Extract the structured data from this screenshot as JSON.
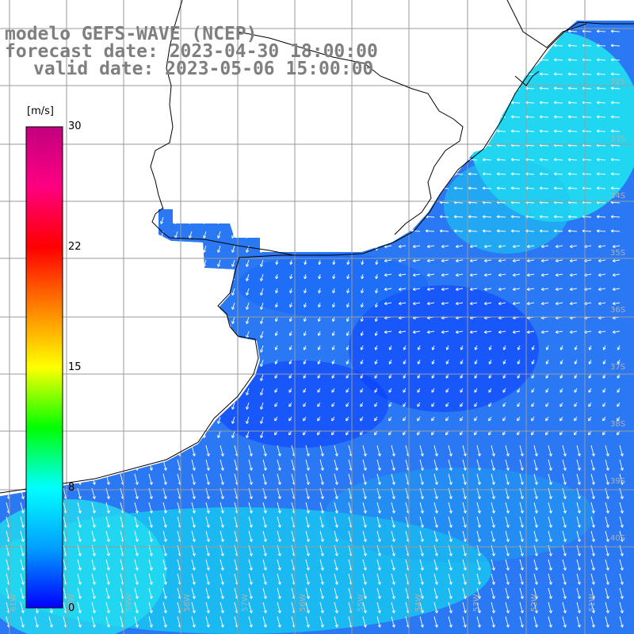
{
  "title": {
    "line1": "modelo GEFS-WAVE (NCEP)",
    "line2": "forecast date: 2023-04-30 18:00:00",
    "line3": "valid date: 2023-05-06 15:00:00"
  },
  "colorbar": {
    "unit": "[m/s]",
    "ticks": [
      "30",
      "22",
      "15",
      "8",
      "0"
    ],
    "tick_values": [
      30,
      22,
      15,
      8,
      0
    ],
    "colors": [
      "#0000ff",
      "#00a0ff",
      "#00ffff",
      "#00ff00",
      "#ffff00",
      "#ff8000",
      "#ff0000",
      "#ff0080",
      "#c0007f"
    ]
  },
  "lat_labels": [
    "32S",
    "33S",
    "34S",
    "35S",
    "36S",
    "37S",
    "38S",
    "39S",
    "40S"
  ],
  "lon_labels": [
    "61W",
    "60W",
    "59W",
    "58W",
    "57W",
    "56W",
    "55W",
    "54W",
    "53W",
    "52W",
    "51W"
  ],
  "colors": {
    "land": "#ffffff",
    "coast": "#000000",
    "grid": "#9a9a9a",
    "arrow": "#ffffff",
    "title": "#7f7f7f"
  }
}
